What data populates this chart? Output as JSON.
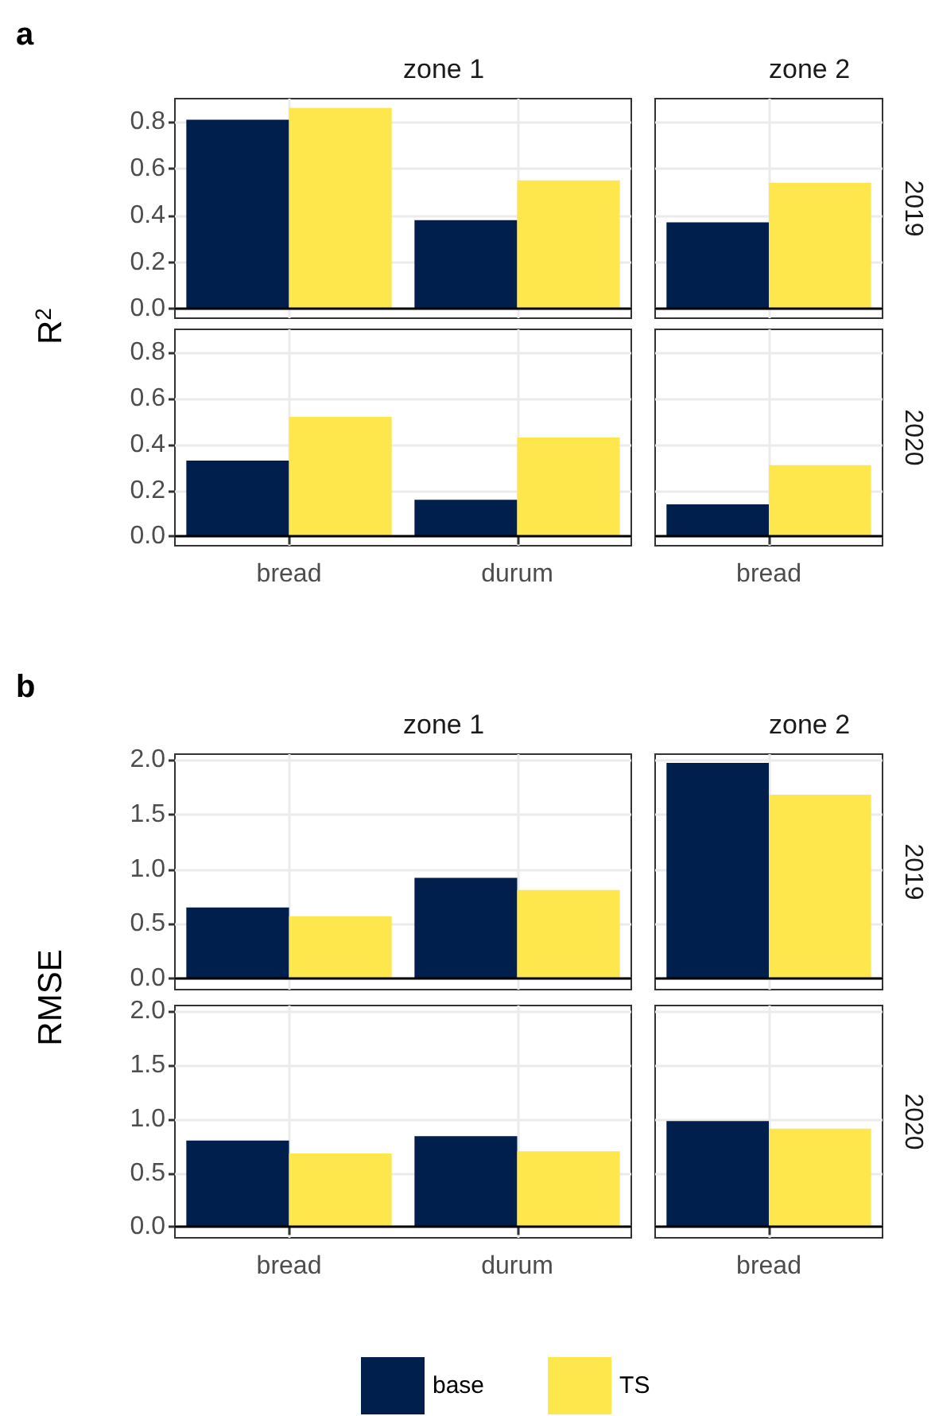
{
  "chart_data": [
    {
      "type": "bar",
      "title": "zone 1",
      "annotations": [
        "a"
      ],
      "ylabel": "R$^{2}$",
      "categories": [
        null,
        null
      ],
      "series": [
        {
          "color": "#001f4d",
          "values": [
            0.81,
            0.38
          ]
        },
        {
          "color": "#fde74c",
          "values": [
            0.86,
            0.55
          ]
        }
      ],
      "ylim": [
        -0.04,
        0.9
      ],
      "yticks": [
        {
          "value": 0,
          "label": "0.0"
        },
        0.2,
        0.4,
        0.6,
        0.8
      ],
      "grid": true,
      "tick_labels": "y",
      "ref_lines": [
        {
          "axis": "y",
          "value": 0,
          "color": "#000000"
        }
      ]
    },
    {
      "type": "bar",
      "title": "zone 2",
      "y2label": "2019",
      "categories": [
        null
      ],
      "series": [
        {
          "color": "#001f4d",
          "values": [
            0.37
          ]
        },
        {
          "color": "#fde74c",
          "values": [
            0.54
          ]
        }
      ],
      "ylim": [
        -0.04,
        0.9
      ],
      "yticks": [
        0,
        0.2,
        0.4,
        0.6,
        0.8
      ],
      "grid": true,
      "tick_labels": false,
      "ref_lines": [
        {
          "axis": "y",
          "value": 0,
          "color": "#000000"
        }
      ]
    },
    {
      "type": "bar",
      "categories": [
        "bread",
        "durum"
      ],
      "series": [
        {
          "color": "#001f4d",
          "values": [
            0.33,
            0.16
          ]
        },
        {
          "color": "#fde74c",
          "values": [
            0.52,
            0.43
          ]
        }
      ],
      "ylim": [
        -0.04,
        0.9
      ],
      "yticks": [
        {
          "value": 0,
          "label": "0.0"
        },
        0.2,
        0.4,
        0.6,
        0.8
      ],
      "grid": true,
      "ref_lines": [
        {
          "axis": "y",
          "value": 0,
          "color": "#000000"
        }
      ]
    },
    {
      "type": "bar",
      "y2label": "2020",
      "categories": [
        "bread"
      ],
      "series": [
        {
          "color": "#001f4d",
          "values": [
            0.14
          ]
        },
        {
          "color": "#fde74c",
          "values": [
            0.31
          ]
        }
      ],
      "ylim": [
        -0.04,
        0.9
      ],
      "yticks": [
        0,
        0.2,
        0.4,
        0.6,
        0.8
      ],
      "grid": true,
      "tick_labels": "x",
      "ref_lines": [
        {
          "axis": "y",
          "value": 0,
          "color": "#000000"
        }
      ]
    },
    {
      "type": "bar",
      "title": "zone 1",
      "annotations": [
        "b"
      ],
      "ylabel": "RMSE",
      "categories": [
        null,
        null
      ],
      "series": [
        {
          "color": "#001f4d",
          "values": [
            0.65,
            0.92
          ]
        },
        {
          "color": "#fde74c",
          "values": [
            0.57,
            0.81
          ]
        }
      ],
      "ylim": [
        -0.1,
        2.05
      ],
      "yticks": [
        {
          "value": 0,
          "label": "0.0"
        },
        {
          "value": 0.5,
          "label": "0.5"
        },
        {
          "value": 1,
          "label": "1.0"
        },
        {
          "value": 1.5,
          "label": "1.5"
        },
        {
          "value": 2,
          "label": "2.0"
        }
      ],
      "grid": true,
      "tick_labels": "y",
      "ref_lines": [
        {
          "axis": "y",
          "value": 0,
          "color": "#000000"
        }
      ]
    },
    {
      "type": "bar",
      "title": "zone 2",
      "y2label": "2019",
      "categories": [
        null
      ],
      "series": [
        {
          "color": "#001f4d",
          "values": [
            1.97
          ]
        },
        {
          "color": "#fde74c",
          "values": [
            1.68
          ]
        }
      ],
      "ylim": [
        -0.1,
        2.05
      ],
      "yticks": [
        0,
        0.5,
        1,
        1.5,
        2
      ],
      "grid": true,
      "tick_labels": false,
      "ref_lines": [
        {
          "axis": "y",
          "value": 0,
          "color": "#000000"
        }
      ]
    },
    {
      "type": "bar",
      "categories": [
        "bread",
        "durum"
      ],
      "series": [
        {
          "color": "#001f4d",
          "values": [
            0.8,
            0.84
          ]
        },
        {
          "color": "#fde74c",
          "values": [
            0.68,
            0.7
          ]
        }
      ],
      "ylim": [
        -0.1,
        2.05
      ],
      "yticks": [
        {
          "value": 0,
          "label": "0.0"
        },
        {
          "value": 0.5,
          "label": "0.5"
        },
        {
          "value": 1,
          "label": "1.0"
        },
        {
          "value": 1.5,
          "label": "1.5"
        },
        {
          "value": 2,
          "label": "2.0"
        }
      ],
      "grid": true,
      "ref_lines": [
        {
          "axis": "y",
          "value": 0,
          "color": "#000000"
        }
      ]
    },
    {
      "type": "bar",
      "y2label": "2020",
      "categories": [
        "bread"
      ],
      "legend": "bottom",
      "series": [
        {
          "name": "base",
          "color": "#001f4d",
          "values": [
            0.98
          ]
        },
        {
          "name": "TS",
          "color": "#fde74c",
          "values": [
            0.91
          ]
        }
      ],
      "ylim": [
        -0.1,
        2.05
      ],
      "yticks": [
        0,
        0.5,
        1,
        1.5,
        2
      ],
      "grid": true,
      "tick_labels": "x",
      "ref_lines": [
        {
          "axis": "y",
          "value": 0,
          "color": "#000000"
        }
      ]
    }
  ]
}
